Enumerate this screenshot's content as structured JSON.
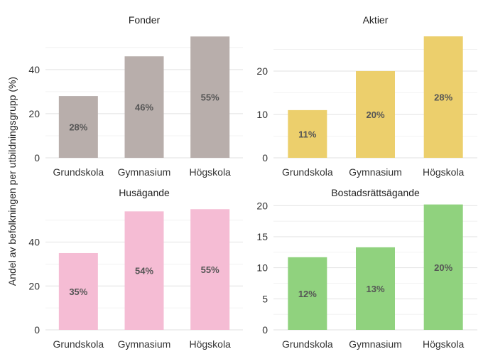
{
  "chart_data": {
    "type": "bar",
    "ylabel": "Andel av befolkningen per utbildningsgrupp (%)",
    "panels": [
      {
        "title": "Fonder",
        "color": "#b8aeab",
        "categories": [
          "Grundskola",
          "Gymnasium",
          "Högskola"
        ],
        "values": [
          28,
          46,
          55
        ],
        "labels": [
          "28%",
          "46%",
          "55%"
        ],
        "ylim": [
          0,
          58
        ],
        "yticks": [
          0,
          20,
          40
        ]
      },
      {
        "title": "Aktier",
        "color": "#eccf6c",
        "categories": [
          "Grundskola",
          "Gymnasium",
          "Högskola"
        ],
        "values": [
          11,
          20,
          28
        ],
        "labels": [
          "11%",
          "20%",
          "28%"
        ],
        "ylim": [
          0,
          29.5
        ],
        "yticks": [
          0,
          10,
          20
        ]
      },
      {
        "title": "Husägande",
        "color": "#f5bcd4",
        "categories": [
          "Grundskola",
          "Gymnasium",
          "Högskola"
        ],
        "values": [
          35,
          54,
          55
        ],
        "labels": [
          "35%",
          "54%",
          "55%"
        ],
        "ylim": [
          0,
          58
        ],
        "yticks": [
          0,
          20,
          40
        ]
      },
      {
        "title": "Bostadsrättsägande",
        "color": "#90d27e",
        "categories": [
          "Grundskola",
          "Gymnasium",
          "Högskola"
        ],
        "values": [
          11.7,
          13.3,
          20.2
        ],
        "labels": [
          "12%",
          "13%",
          "20%"
        ],
        "ylim": [
          0,
          20.5
        ],
        "yticks": [
          0,
          5,
          10,
          15,
          20
        ]
      }
    ]
  }
}
